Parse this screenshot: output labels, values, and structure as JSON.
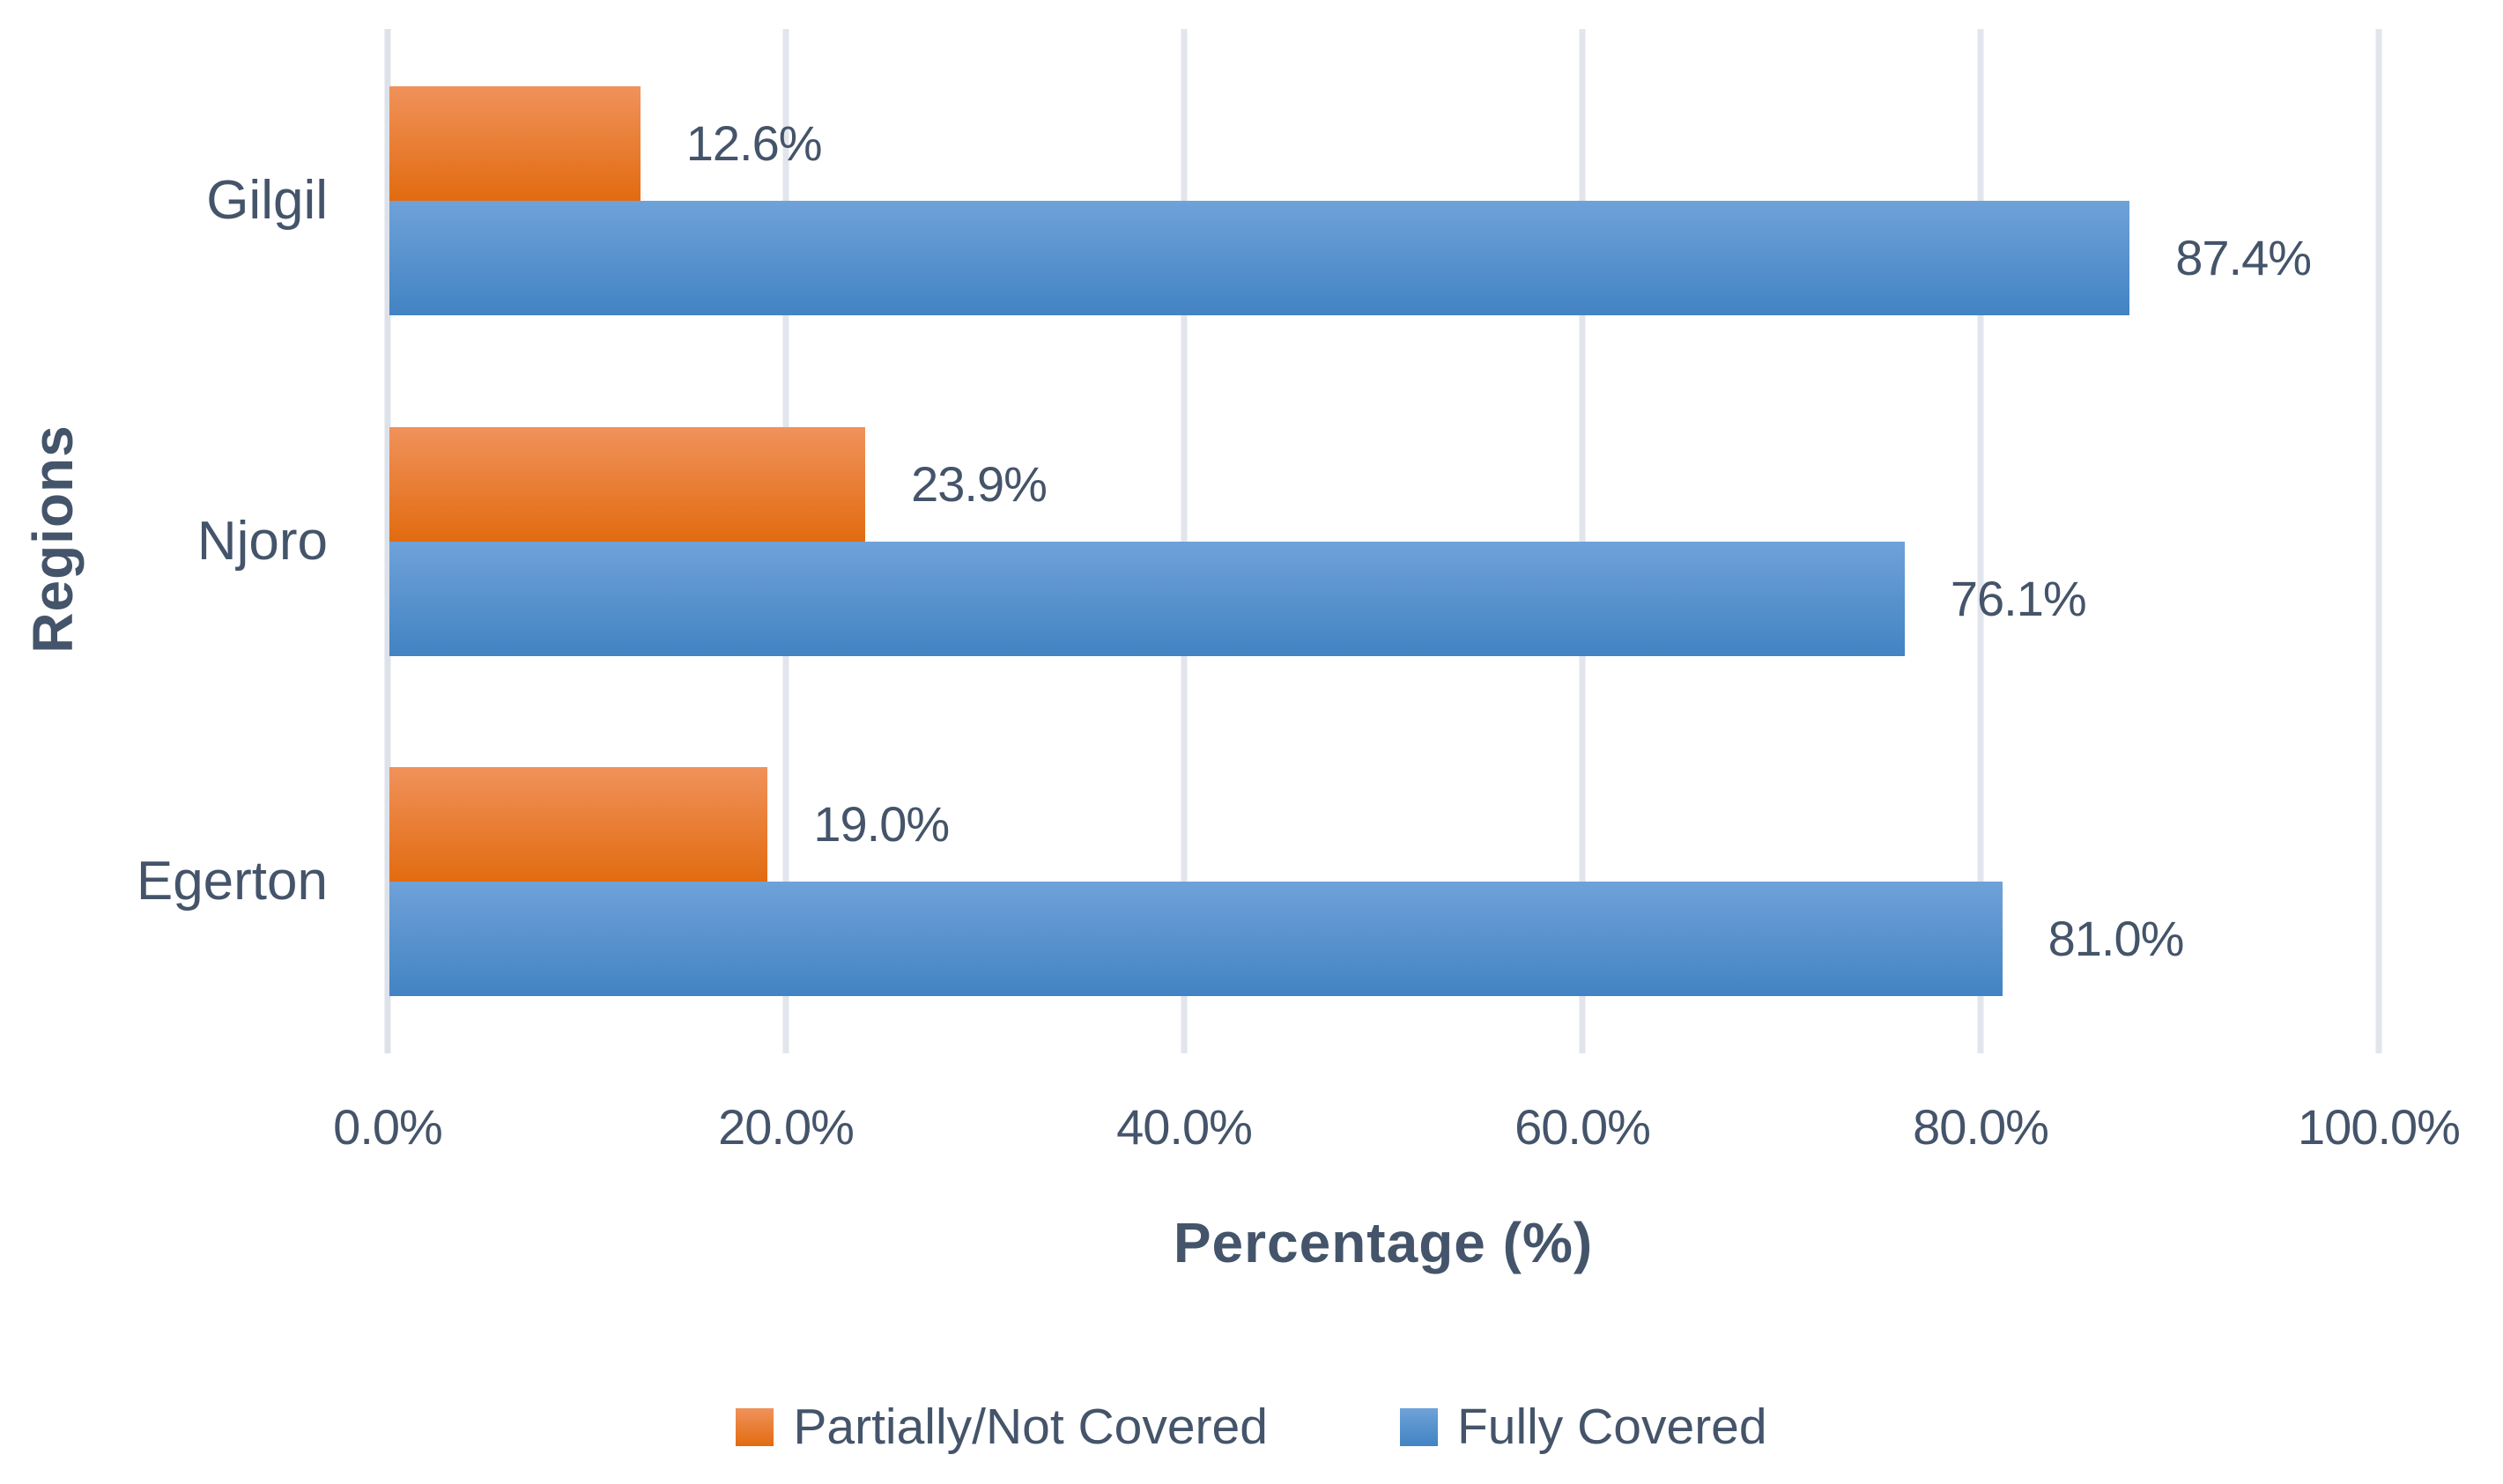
{
  "chart_data": {
    "type": "bar",
    "orientation": "horizontal",
    "xlabel": "Percentage (%)",
    "ylabel": "Regions",
    "xlim": [
      0,
      100
    ],
    "grid": true,
    "legend_position": "bottom",
    "categories": [
      "Gilgil",
      "Njoro",
      "Egerton"
    ],
    "series": [
      {
        "name": "Partially/Not Covered",
        "values": [
          12.6,
          23.9,
          19.0
        ],
        "data_labels": [
          "12.6%",
          "23.9%",
          "19.0%"
        ],
        "color_top": "#F0925B",
        "color_bottom": "#E26B10"
      },
      {
        "name": "Fully Covered",
        "values": [
          87.4,
          76.1,
          81.0
        ],
        "data_labels": [
          "87.4%",
          "76.1%",
          "81.0%"
        ],
        "color_top": "#6FA2D9",
        "color_bottom": "#4283C3"
      }
    ],
    "x_ticks": [
      {
        "value": 0,
        "label": "0.0%"
      },
      {
        "value": 20,
        "label": "20.0%"
      },
      {
        "value": 40,
        "label": "40.0%"
      },
      {
        "value": 60,
        "label": "60.0%"
      },
      {
        "value": 80,
        "label": "80.0%"
      },
      {
        "value": 100,
        "label": "100.0%"
      }
    ],
    "legend_entries": [
      "Partially/Not Covered",
      "Fully Covered"
    ]
  },
  "colors": {
    "text": "#44546A",
    "gridline": "#E2E6EC",
    "axis_line": "#DDE2EA",
    "background": "#FFFFFF"
  }
}
